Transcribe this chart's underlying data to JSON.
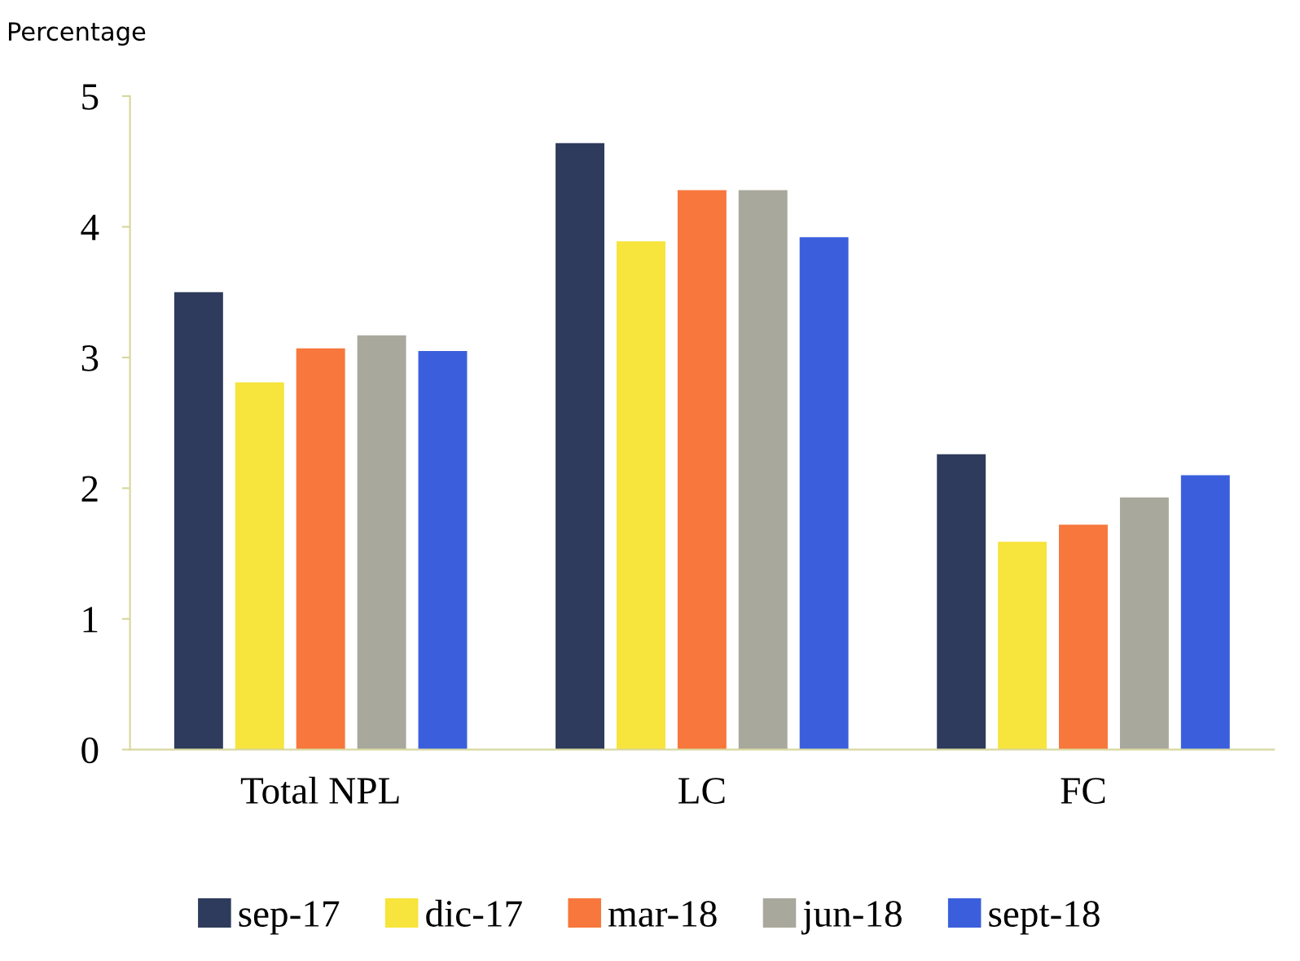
{
  "chart_data": {
    "type": "bar",
    "ylabel": "Percentage",
    "categories": [
      "Total NPL",
      "LC",
      "FC"
    ],
    "series": [
      {
        "name": "sep-17",
        "color": "#2e3b5c",
        "values": [
          3.5,
          4.64,
          2.26
        ]
      },
      {
        "name": "dic-17",
        "color": "#f7e43c",
        "values": [
          2.81,
          3.89,
          1.59
        ]
      },
      {
        "name": "mar-18",
        "color": "#f7773c",
        "values": [
          3.07,
          4.28,
          1.72
        ]
      },
      {
        "name": "jun-18",
        "color": "#a9a89c",
        "values": [
          3.17,
          4.28,
          1.93
        ]
      },
      {
        "name": "sept-18",
        "color": "#3b5fdc",
        "values": [
          3.05,
          3.92,
          2.1
        ]
      }
    ],
    "ylim": [
      0,
      5
    ],
    "yticks": [
      0,
      1,
      2,
      3,
      4,
      5
    ],
    "grid": false,
    "legend": "bottom"
  }
}
